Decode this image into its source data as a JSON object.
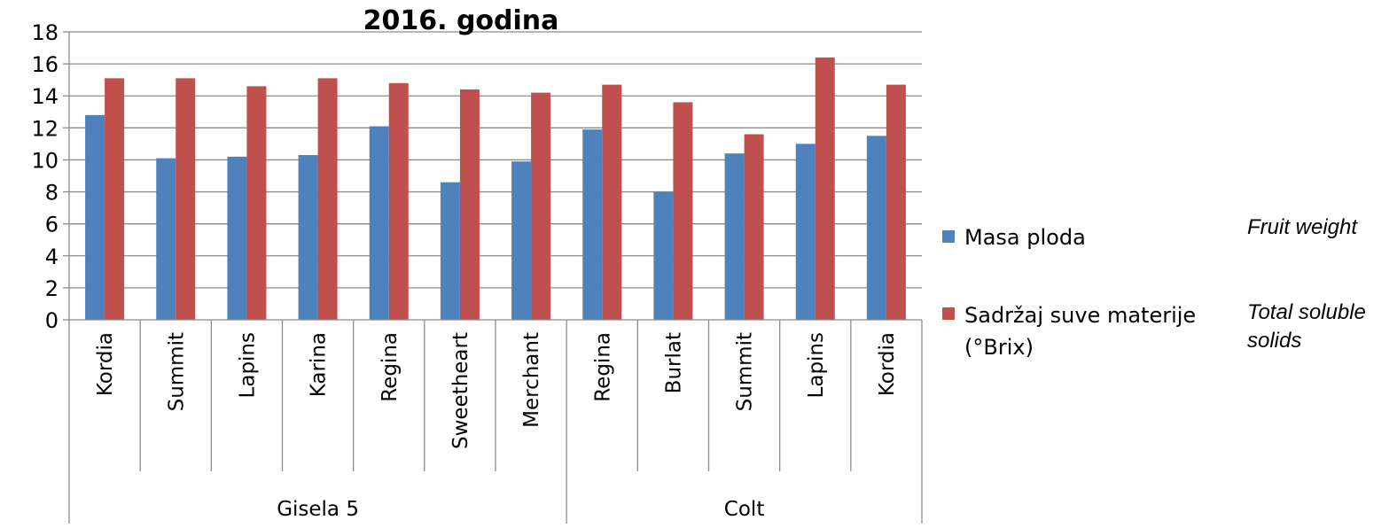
{
  "chart_data": {
    "type": "bar",
    "title": "2016. godina",
    "xlabel": "",
    "ylabel": "",
    "ylim": [
      0,
      18
    ],
    "yticks": [
      "0",
      "2",
      "4",
      "6",
      "8",
      "10",
      "12",
      "14",
      "16",
      "18"
    ],
    "grid": true,
    "legend_position": "right",
    "groups": [
      {
        "label": "Gisela 5",
        "categories": [
          "Kordia",
          "Summit",
          "Lapins",
          "Karina",
          "Regina",
          "Sweetheart",
          "Merchant"
        ]
      },
      {
        "label": "Colt",
        "categories": [
          "Regina",
          "Burlat",
          "Summit",
          "Lapins",
          "Kordia"
        ]
      }
    ],
    "categories": [
      "Kordia",
      "Summit",
      "Lapins",
      "Karina",
      "Regina",
      "Sweetheart",
      "Merchant",
      "Regina",
      "Burlat",
      "Summit",
      "Lapins",
      "Kordia"
    ],
    "series": [
      {
        "name": "Masa ploda",
        "color": "#4F81BD",
        "values": [
          12.8,
          10.1,
          10.2,
          10.3,
          12.1,
          8.6,
          9.9,
          11.9,
          8.0,
          10.4,
          11.0,
          11.5
        ]
      },
      {
        "name": "Sadržaj suve materije (°Brix)",
        "color": "#C0504D",
        "values": [
          15.1,
          15.1,
          14.6,
          15.1,
          14.8,
          14.4,
          14.2,
          14.7,
          13.6,
          11.6,
          16.4,
          14.7
        ]
      }
    ],
    "annotations": {
      "series_1_english": "Fruit weight",
      "series_2_english_line1": "Total soluble",
      "series_2_english_line2": "solids"
    },
    "legend": {
      "series_1_label": "Masa ploda",
      "series_2_line1": "Sadržaj suve materije",
      "series_2_line2": "(°Brix)"
    }
  }
}
